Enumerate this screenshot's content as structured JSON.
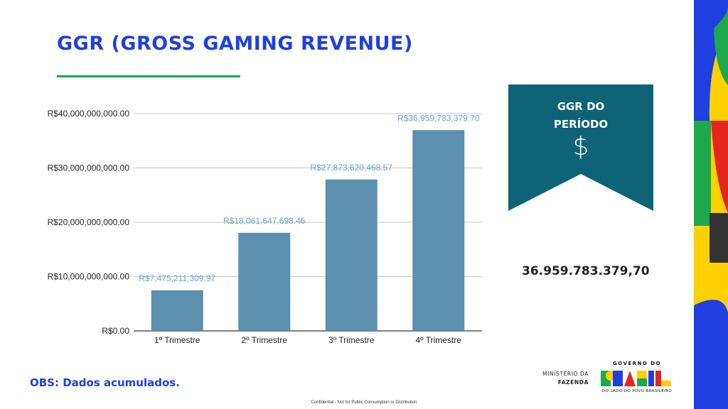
{
  "slide": {
    "title": "GGR (GROSS GAMING REVENUE)",
    "note": "OBS: Dados acumulados.",
    "footer": "Confidential - Not for Public Consumption or Distribution"
  },
  "ribbon": {
    "title_line1": "GGR DO",
    "title_line2": "PERÍODO",
    "icon": "dollar-sign-icon",
    "icon_glyph": "$",
    "color": "#0e6377"
  },
  "period_value": "36.959.783.379,70",
  "logos": {
    "ministry_line1": "MINISTÉRIO DA",
    "ministry_line2": "FAZENDA",
    "gov_top": "GOVERNO DO",
    "gov_main": "BRASIL",
    "gov_bottom": "DO LADO DO POVO BRASILEIRO"
  },
  "colors": {
    "accent_blue": "#1f3fe0",
    "accent_green": "#1ea84e",
    "bar": "#5b91ae",
    "data_label": "#6aa3c6",
    "brand_yellow": "#ffd100",
    "brand_red": "#e52620"
  },
  "chart_data": {
    "type": "bar",
    "title": "",
    "xlabel": "",
    "ylabel": "",
    "categories": [
      "1º Trimestre",
      "2º Trimestre",
      "3º Trimestre",
      "4º Trimestre"
    ],
    "values": [
      7475211309.97,
      18061647698.46,
      27873620468.57,
      36959783379.7
    ],
    "data_labels": [
      "R$7,475,211,309.97",
      "R$18,061,647,698.46",
      "R$27,873,620,468.57",
      "R$36,959,783,379.70"
    ],
    "ylim": [
      0,
      40000000000
    ],
    "yticks": [
      0,
      10000000000,
      20000000000,
      30000000000,
      40000000000
    ],
    "ytick_labels": [
      "R$0.00",
      "R$10,000,000,000.00",
      "R$20,000,000,000.00",
      "R$30,000,000,000.00",
      "R$40,000,000,000.00"
    ],
    "grid": true,
    "legend": "none"
  }
}
